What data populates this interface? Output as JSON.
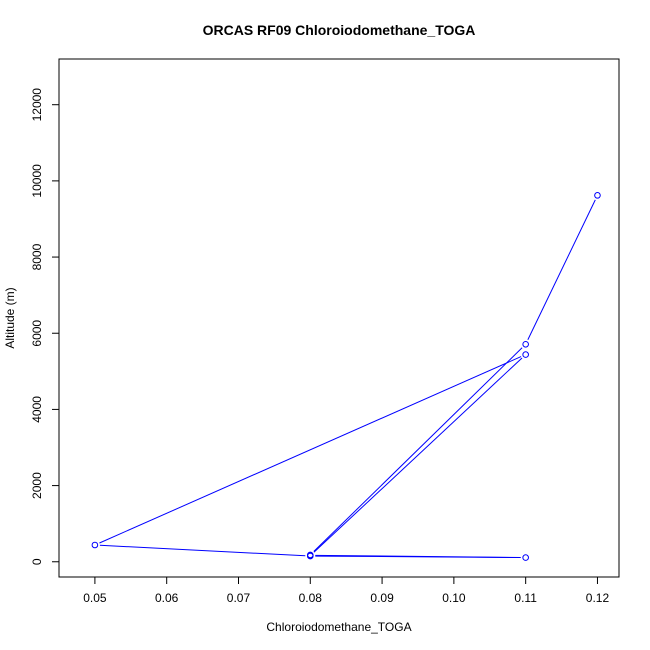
{
  "chart_data": {
    "type": "line",
    "title": "ORCAS RF09 Chloroiodomethane_TOGA",
    "xlabel": "Chloroiodomethane_TOGA",
    "ylabel": "Altitude (m)",
    "xlim": [
      0.045,
      0.123
    ],
    "ylim": [
      -400,
      13200
    ],
    "xticks": [
      0.05,
      0.06,
      0.07,
      0.08,
      0.09,
      0.1,
      0.11,
      0.12
    ],
    "xtick_labels": [
      "0.05",
      "0.06",
      "0.07",
      "0.08",
      "0.09",
      "0.10",
      "0.11",
      "0.12"
    ],
    "yticks": [
      0,
      2000,
      4000,
      6000,
      8000,
      10000,
      12000
    ],
    "ytick_labels": [
      "0",
      "2000",
      "4000",
      "6000",
      "8000",
      "10000",
      "12000"
    ],
    "grid": false,
    "legend": "none",
    "series": [
      {
        "color": "#0000ff",
        "marker": "open-circle",
        "points": [
          {
            "x": 0.12,
            "y": 9620
          },
          {
            "x": 0.11,
            "y": 5710
          },
          {
            "x": 0.08,
            "y": 180
          },
          {
            "x": 0.08,
            "y": 160
          },
          {
            "x": 0.11,
            "y": 5440
          },
          {
            "x": 0.05,
            "y": 440
          },
          {
            "x": 0.08,
            "y": 150
          },
          {
            "x": 0.11,
            "y": 110
          },
          {
            "x": 0.08,
            "y": 170
          }
        ]
      }
    ]
  }
}
